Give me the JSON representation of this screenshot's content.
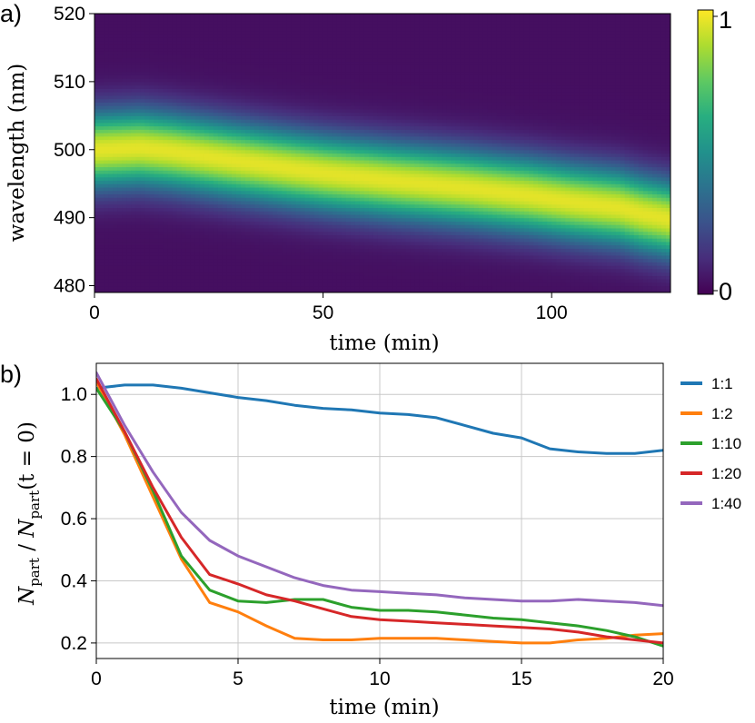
{
  "chart_data": [
    {
      "panel_label": "a)",
      "type": "heatmap",
      "xlabel": "time (min)",
      "ylabel": "wavelength (nm)",
      "xlim": [
        0,
        126
      ],
      "ylim": [
        479,
        520
      ],
      "xticks": [
        0,
        50,
        100
      ],
      "yticks": [
        480,
        490,
        500,
        510,
        520
      ],
      "colorbar": {
        "min_label": "0",
        "max_label": "1",
        "range": [
          0,
          1
        ],
        "colormap": "viridis"
      },
      "peak_wavelength": {
        "time": [
          0,
          10,
          17,
          30,
          50,
          65,
          80,
          95,
          105,
          115,
          120,
          126
        ],
        "value": [
          500,
          500.3,
          499.8,
          498.5,
          496.6,
          495.5,
          494.5,
          493.3,
          492.3,
          491.5,
          490.6,
          489.8
        ]
      },
      "peak_width_nm": 5.5
    },
    {
      "panel_label": "b)",
      "type": "line",
      "xlabel": "time (min)",
      "ylabel_parts": {
        "n": "N",
        "sub": "part",
        "slash": " / ",
        "tail": "(t = 0)"
      },
      "xlim": [
        0,
        20
      ],
      "ylim": [
        0.15,
        1.1
      ],
      "xticks": [
        0,
        5,
        10,
        15,
        20
      ],
      "yticks": [
        0.2,
        0.4,
        0.6,
        0.8,
        1.0
      ],
      "ytick_labels": [
        "0.2",
        "0.4",
        "0.6",
        "0.8",
        "1.0"
      ],
      "grid": true,
      "legend_position": "outside-right",
      "x": [
        0,
        1,
        2,
        3,
        4,
        5,
        6,
        7,
        8,
        9,
        10,
        11,
        12,
        13,
        14,
        15,
        16,
        17,
        18,
        19,
        20
      ],
      "series": [
        {
          "name": "1:1",
          "color": "#1f77b4",
          "values": [
            1.02,
            1.03,
            1.03,
            1.02,
            1.005,
            0.99,
            0.98,
            0.965,
            0.955,
            0.95,
            0.94,
            0.935,
            0.925,
            0.9,
            0.875,
            0.86,
            0.825,
            0.815,
            0.81,
            0.81,
            0.82
          ]
        },
        {
          "name": "1:2",
          "color": "#ff7f0e",
          "values": [
            1.04,
            0.87,
            0.67,
            0.47,
            0.33,
            0.3,
            0.255,
            0.215,
            0.21,
            0.21,
            0.215,
            0.215,
            0.215,
            0.21,
            0.205,
            0.2,
            0.2,
            0.21,
            0.215,
            0.225,
            0.23
          ]
        },
        {
          "name": "1:10",
          "color": "#2ca02c",
          "values": [
            1.02,
            0.88,
            0.69,
            0.48,
            0.37,
            0.335,
            0.33,
            0.34,
            0.34,
            0.315,
            0.305,
            0.305,
            0.3,
            0.29,
            0.28,
            0.275,
            0.265,
            0.255,
            0.24,
            0.22,
            0.19
          ]
        },
        {
          "name": "1:20",
          "color": "#d62728",
          "values": [
            1.05,
            0.88,
            0.7,
            0.54,
            0.42,
            0.39,
            0.355,
            0.335,
            0.31,
            0.285,
            0.275,
            0.27,
            0.265,
            0.26,
            0.255,
            0.25,
            0.245,
            0.235,
            0.22,
            0.21,
            0.2
          ]
        },
        {
          "name": "1:40",
          "color": "#9467bd",
          "values": [
            1.07,
            0.9,
            0.75,
            0.62,
            0.53,
            0.48,
            0.445,
            0.41,
            0.385,
            0.37,
            0.365,
            0.36,
            0.355,
            0.345,
            0.34,
            0.335,
            0.335,
            0.34,
            0.335,
            0.33,
            0.32
          ]
        }
      ]
    }
  ]
}
